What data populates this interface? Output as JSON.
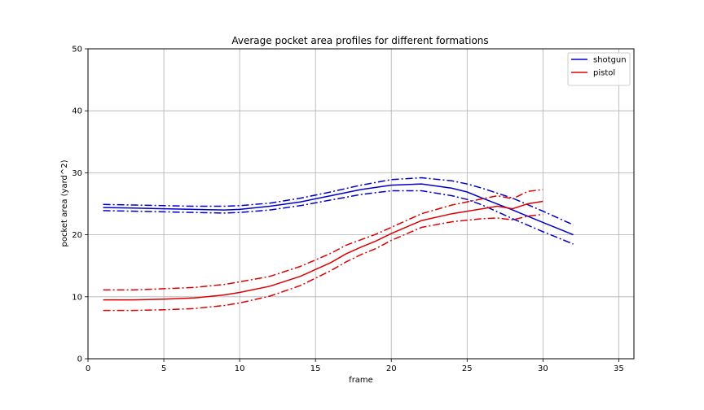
{
  "chart_data": {
    "type": "line",
    "title": "Average pocket area profiles for different formations",
    "xlabel": "frame",
    "ylabel": "pocket area (yard^2)",
    "xlim": [
      0,
      36
    ],
    "ylim": [
      0,
      50
    ],
    "xticks": [
      0,
      5,
      10,
      15,
      20,
      25,
      30,
      35
    ],
    "yticks": [
      0,
      10,
      20,
      30,
      40,
      50
    ],
    "grid": true,
    "legend_position": "top-right",
    "series": [
      {
        "name": "shotgun",
        "color": "#0000cc",
        "style": "solid",
        "x": [
          1,
          3,
          5,
          7,
          9,
          10,
          12,
          14,
          16,
          18,
          20,
          22,
          24,
          25,
          26,
          28,
          30,
          32
        ],
        "y": [
          24.4,
          24.3,
          24.2,
          24.1,
          24.0,
          24.1,
          24.6,
          25.3,
          26.3,
          27.3,
          28.0,
          28.2,
          27.5,
          26.9,
          25.9,
          24.0,
          22.0,
          20.0
        ]
      },
      {
        "name": "",
        "color": "#0000cc",
        "style": "dashdot",
        "x": [
          1,
          3,
          5,
          7,
          9,
          10,
          12,
          14,
          16,
          18,
          20,
          22,
          24,
          25,
          26,
          28,
          30,
          32
        ],
        "y": [
          24.9,
          24.8,
          24.7,
          24.6,
          24.6,
          24.7,
          25.1,
          25.9,
          26.9,
          28.0,
          28.9,
          29.2,
          28.7,
          28.2,
          27.5,
          25.9,
          23.8,
          21.6
        ]
      },
      {
        "name": "",
        "color": "#0000cc",
        "style": "dashdot",
        "x": [
          1,
          3,
          5,
          7,
          9,
          10,
          12,
          14,
          16,
          18,
          20,
          22,
          24,
          25,
          26,
          28,
          30,
          32
        ],
        "y": [
          23.9,
          23.8,
          23.7,
          23.6,
          23.5,
          23.6,
          24.0,
          24.7,
          25.6,
          26.5,
          27.1,
          27.1,
          26.3,
          25.7,
          24.8,
          22.6,
          20.5,
          18.5
        ]
      },
      {
        "name": "pistol",
        "color": "#dd0000",
        "style": "solid",
        "x": [
          1,
          3,
          5,
          7,
          9,
          10,
          12,
          14,
          16,
          17,
          18,
          19,
          20,
          22,
          24,
          26,
          27,
          28,
          29,
          30
        ],
        "y": [
          9.5,
          9.5,
          9.6,
          9.8,
          10.3,
          10.7,
          11.7,
          13.3,
          15.5,
          16.9,
          18.0,
          19.0,
          20.2,
          22.3,
          23.4,
          24.2,
          24.6,
          24.2,
          25.0,
          25.4
        ]
      },
      {
        "name": "",
        "color": "#dd0000",
        "style": "dashdot",
        "x": [
          1,
          3,
          5,
          7,
          9,
          10,
          12,
          14,
          16,
          17,
          18,
          19,
          20,
          22,
          24,
          26,
          27,
          28,
          29,
          30
        ],
        "y": [
          11.1,
          11.1,
          11.3,
          11.5,
          12.0,
          12.4,
          13.3,
          14.9,
          17.0,
          18.3,
          19.2,
          20.1,
          21.2,
          23.4,
          24.8,
          25.8,
          26.3,
          25.8,
          27.0,
          27.3
        ]
      },
      {
        "name": "",
        "color": "#dd0000",
        "style": "dashdot",
        "x": [
          1,
          3,
          5,
          7,
          9,
          10,
          12,
          14,
          16,
          17,
          18,
          19,
          20,
          22,
          24,
          26,
          27,
          28,
          29,
          30
        ],
        "y": [
          7.8,
          7.8,
          7.9,
          8.1,
          8.6,
          9.0,
          10.1,
          11.8,
          14.2,
          15.6,
          16.8,
          17.8,
          19.1,
          21.2,
          22.1,
          22.6,
          22.7,
          22.4,
          23.0,
          23.3
        ]
      }
    ]
  }
}
